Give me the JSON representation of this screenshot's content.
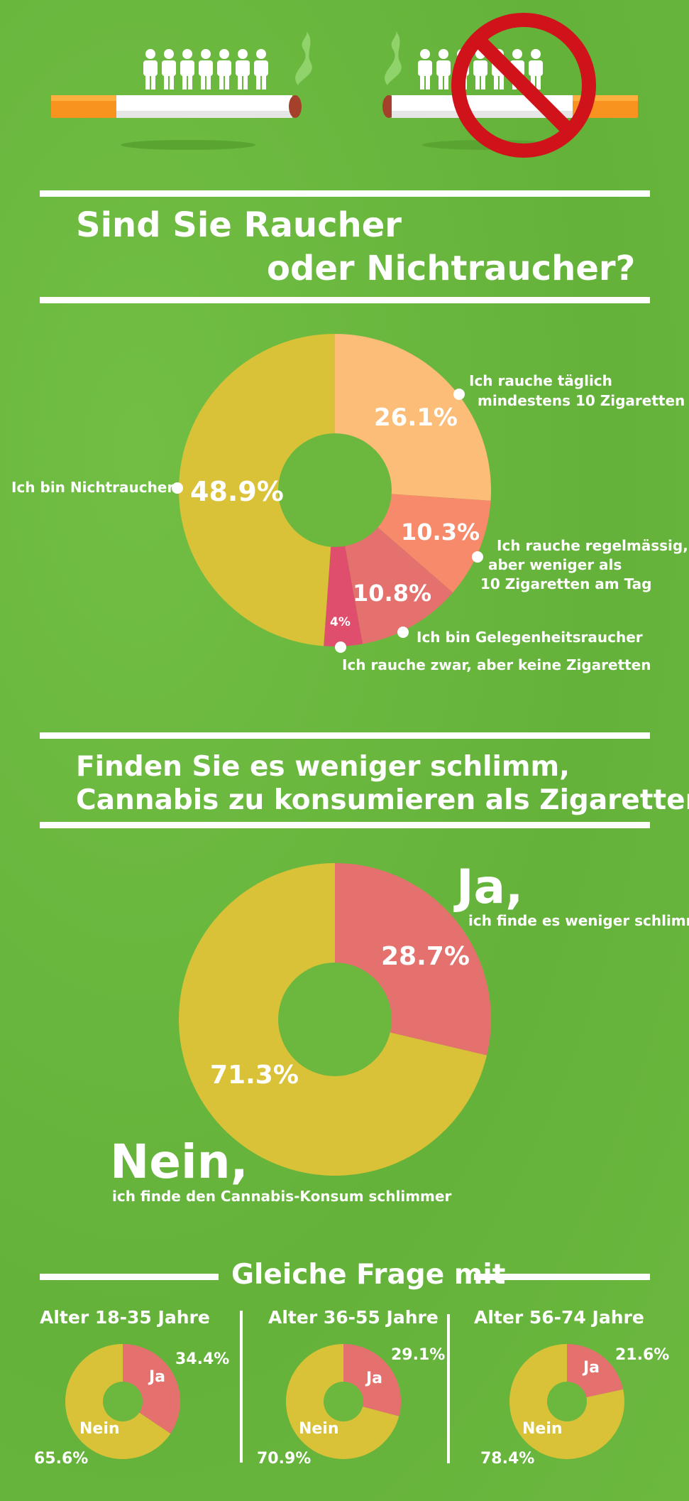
{
  "header": {
    "smoker_count": 7,
    "nonsmoker_count": 7,
    "colors": {
      "filter": "#f7931e",
      "paper": "#ffffff",
      "ember": "#a5402a",
      "smoke": "#8fd36a",
      "ban": "#d0121b"
    }
  },
  "section1": {
    "title_line1": "Sind Sie Raucher",
    "title_line2": "oder Nichtraucher?"
  },
  "section2": {
    "title_line1": "Finden Sie es weniger schlimm,",
    "title_line2": "Cannabis zu konsumieren als Zigaretten?",
    "ja_big": "Ja,",
    "ja_sub": "ich finde es weniger schlimm",
    "nein_big": "Nein,",
    "nein_sub": "ich finde den Cannabis-Konsum schlimmer"
  },
  "section3": {
    "title": "Gleiche Frage mit"
  },
  "chart_data": [
    {
      "type": "pie",
      "donut": true,
      "slices": [
        {
          "label": "Ich rauche täglich mindestens 10 Zigaretten",
          "value": 26.1,
          "display": "26.1%",
          "color": "#fbbd77"
        },
        {
          "label": "Ich rauche regelmässig, aber weniger als 10 Zigaretten am Tag",
          "value": 10.3,
          "display": "10.3%",
          "color": "#f68a6b"
        },
        {
          "label": "Ich bin Gelegenheitsraucher",
          "value": 10.8,
          "display": "10.8%",
          "color": "#e5716f"
        },
        {
          "label": "Ich rauche zwar, aber keine Zigaretten",
          "value": 4.0,
          "display": "4%",
          "color": "#e04e6e"
        },
        {
          "label": "Ich bin Nichtraucher",
          "value": 48.9,
          "display": "48.9%",
          "color": "#d9c238"
        }
      ],
      "legend": {
        "daily_l1": "Ich rauche täglich",
        "daily_l2": "mindestens 10 Zigaretten",
        "regular_l1": "Ich rauche regelmässig,",
        "regular_l2": "aber weniger als",
        "regular_l3": "10 Zigaretten am Tag",
        "occasional": "Ich bin Gelegenheitsraucher",
        "other": "Ich rauche zwar, aber keine Zigaretten",
        "nonsmoker": "Ich bin Nichtraucher"
      }
    },
    {
      "type": "pie",
      "donut": true,
      "slices": [
        {
          "label": "Ja",
          "value": 28.7,
          "display": "28.7%",
          "color": "#e5716f"
        },
        {
          "label": "Nein",
          "value": 71.3,
          "display": "71.3%",
          "color": "#d9c238"
        }
      ]
    },
    {
      "type": "pie",
      "donut": true,
      "title": "Alter 18-35 Jahre",
      "slices": [
        {
          "label": "Ja",
          "value": 34.4,
          "display": "34.4%",
          "color": "#e5716f"
        },
        {
          "label": "Nein",
          "value": 65.6,
          "display": "65.6%",
          "color": "#d9c238"
        }
      ]
    },
    {
      "type": "pie",
      "donut": true,
      "title": "Alter 36-55 Jahre",
      "slices": [
        {
          "label": "Ja",
          "value": 29.1,
          "display": "29.1%",
          "color": "#e5716f"
        },
        {
          "label": "Nein",
          "value": 70.9,
          "display": "70.9%",
          "color": "#d9c238"
        }
      ]
    },
    {
      "type": "pie",
      "donut": true,
      "title": "Alter 56-74 Jahre",
      "slices": [
        {
          "label": "Ja",
          "value": 21.6,
          "display": "21.6%",
          "color": "#e5716f"
        },
        {
          "label": "Nein",
          "value": 78.4,
          "display": "78.4%",
          "color": "#d9c238"
        }
      ]
    }
  ]
}
